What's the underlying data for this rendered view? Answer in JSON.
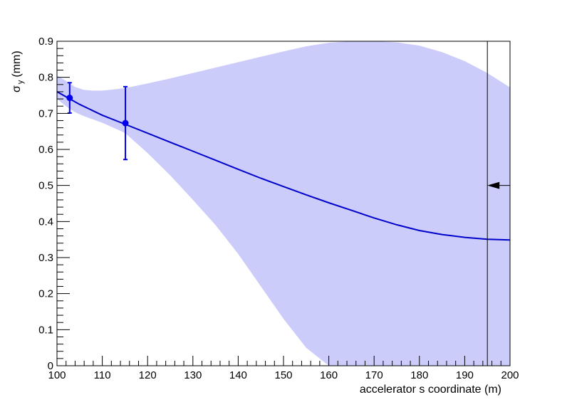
{
  "chart_data": {
    "type": "line",
    "title": "",
    "xlabel": "accelerator s coordinate (m)",
    "ylabel": {
      "symbol": "σ",
      "subscript": "y",
      "unit": "(mm)"
    },
    "xlim": [
      100,
      200
    ],
    "ylim": [
      0,
      0.9
    ],
    "x_ticks": [
      "100",
      "110",
      "120",
      "130",
      "140",
      "150",
      "160",
      "170",
      "180",
      "190",
      "200"
    ],
    "y_ticks": [
      "0",
      "0.1",
      "0.2",
      "0.3",
      "0.4",
      "0.5",
      "0.6",
      "0.7",
      "0.8",
      "0.9"
    ],
    "grid": false,
    "fit_curve": {
      "x": [
        100,
        105,
        110,
        115,
        120,
        125,
        130,
        135,
        140,
        145,
        150,
        155,
        160,
        165,
        170,
        175,
        180,
        185,
        190,
        195,
        200
      ],
      "y": [
        0.76,
        0.725,
        0.695,
        0.67,
        0.645,
        0.62,
        0.595,
        0.57,
        0.545,
        0.52,
        0.497,
        0.474,
        0.452,
        0.431,
        0.41,
        0.391,
        0.375,
        0.364,
        0.356,
        0.351,
        0.349
      ],
      "color": "#0000cc"
    },
    "confidence_band": {
      "x": [
        100,
        102,
        104,
        106,
        108,
        110,
        115,
        120,
        125,
        130,
        135,
        140,
        145,
        150,
        155,
        160,
        165,
        170,
        175,
        180,
        185,
        190,
        195,
        200
      ],
      "upper": [
        0.805,
        0.79,
        0.773,
        0.765,
        0.763,
        0.763,
        0.77,
        0.783,
        0.797,
        0.812,
        0.827,
        0.842,
        0.857,
        0.872,
        0.886,
        0.896,
        0.9,
        0.9,
        0.897,
        0.888,
        0.87,
        0.845,
        0.812,
        0.772
      ],
      "lower": [
        0.74,
        0.72,
        0.703,
        0.692,
        0.683,
        0.674,
        0.646,
        0.59,
        0.528,
        0.46,
        0.39,
        0.31,
        0.22,
        0.13,
        0.05,
        0.0,
        0.0,
        0.0,
        0.0,
        0.0,
        0.0,
        0.0,
        0.0,
        0.0
      ],
      "color": "#ccccfb"
    },
    "data_points": [
      {
        "x": 102.8,
        "y": 0.743,
        "err": 0.042
      },
      {
        "x": 115.1,
        "y": 0.673,
        "err": 0.101
      }
    ],
    "marker_color": "#0000ee",
    "vertical_line_x": 195,
    "arrow": {
      "x_from": 200,
      "x_to": 195,
      "y": 0.5
    }
  }
}
